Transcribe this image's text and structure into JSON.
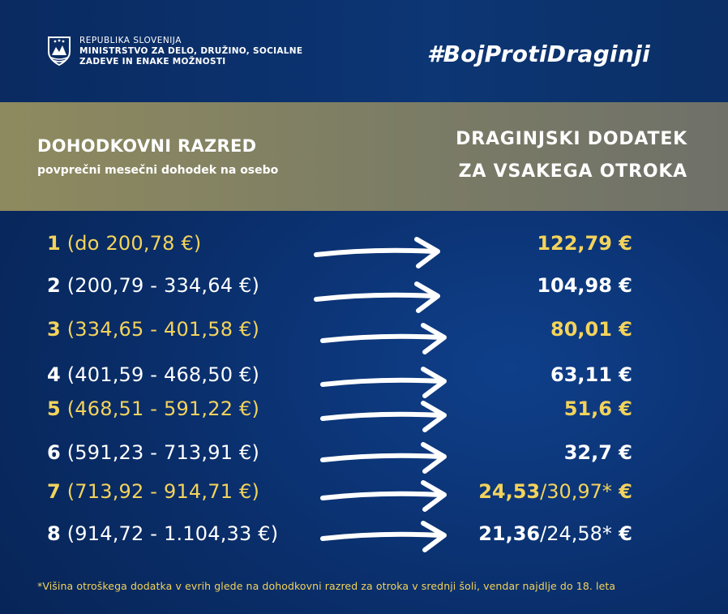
{
  "header": {
    "org_line1": "REPUBLIKA SLOVENIJA",
    "org_line2": "MINISTRSTVO ZA DELO, DRUŽINO, SOCIALNE",
    "org_line3": "ZADEVE IN ENAKE MOŽNOSTI",
    "hashtag": "#BojProtiDraginji",
    "crest_icon": "slovenian-coat-of-arms-icon"
  },
  "band": {
    "left_title": "DOHODKOVNI RAZRED",
    "left_subtitle": "povprečni mesečni dohodek na osebo",
    "right_line1": "DRAGINJSKI DODATEK",
    "right_line2": "ZA VSAKEGA OTROKA"
  },
  "colors": {
    "accent_yellow": "#f3d35b",
    "band": "#86856a",
    "background_blue": "#0a2f6c"
  },
  "rows": [
    {
      "num": "1",
      "range": "(do 200,78 €)",
      "amount": "122,79 €",
      "amount_alt": "",
      "amount_suffix": "",
      "color": "yellow"
    },
    {
      "num": "2",
      "range": "(200,79 - 334,64 €)",
      "amount": "104,98 €",
      "amount_alt": "",
      "amount_suffix": "",
      "color": "white"
    },
    {
      "num": "3",
      "range": "(334,65 - 401,58 €)",
      "amount": "80,01 €",
      "amount_alt": "",
      "amount_suffix": "",
      "color": "yellow"
    },
    {
      "num": "4",
      "range": "(401,59 - 468,50 €)",
      "amount": "63,11 €",
      "amount_alt": "",
      "amount_suffix": "",
      "color": "white"
    },
    {
      "num": "5",
      "range": "(468,51 - 591,22 €)",
      "amount": "51,6 €",
      "amount_alt": "",
      "amount_suffix": "",
      "color": "yellow"
    },
    {
      "num": "6",
      "range": "(591,23 - 713,91 €)",
      "amount": "32,7 €",
      "amount_alt": "",
      "amount_suffix": "",
      "color": "white"
    },
    {
      "num": "7",
      "range": "(713,92 - 914,71 €)",
      "amount": "24,53",
      "amount_alt": "/30,97*",
      "amount_suffix": " €",
      "color": "yellow"
    },
    {
      "num": "8",
      "range": "(914,72 - 1.104,33 €)",
      "amount": "21,36",
      "amount_alt": "/24,58*",
      "amount_suffix": " €",
      "color": "white"
    }
  ],
  "footnote": "*Višina otroškega dodatka v evrih glede na dohodkovni razred za otroka v srednji šoli, vendar najdlje do 18. leta"
}
